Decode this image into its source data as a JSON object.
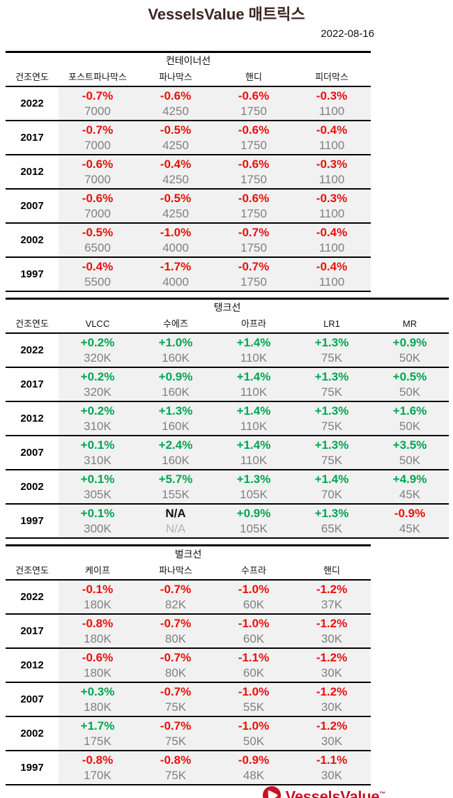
{
  "title": "VesselsValue 매트릭스",
  "date": "2022-08-16",
  "logo": {
    "text": "VesselsValue",
    "tm": "™"
  },
  "colors": {
    "negative": "#e8100c",
    "positive": "#00a651",
    "value_gray": "#808080",
    "na_gray": "#b5b5b5",
    "brand_red": "#c41425",
    "title": "#3d2421"
  },
  "chart_data": [
    {
      "type": "table",
      "title": "컨테이너선",
      "year_col_header": "건조연도",
      "columns": [
        "포스트파나막스",
        "파나막스",
        "핸디",
        "피더막스"
      ],
      "rows": [
        {
          "year": "2022",
          "cells": [
            [
              "-0.7%",
              "7000"
            ],
            [
              "-0.6%",
              "4250"
            ],
            [
              "-0.6%",
              "1750"
            ],
            [
              "-0.3%",
              "1100"
            ]
          ]
        },
        {
          "year": "2017",
          "cells": [
            [
              "-0.7%",
              "7000"
            ],
            [
              "-0.5%",
              "4250"
            ],
            [
              "-0.6%",
              "1750"
            ],
            [
              "-0.4%",
              "1100"
            ]
          ]
        },
        {
          "year": "2012",
          "cells": [
            [
              "-0.6%",
              "7000"
            ],
            [
              "-0.4%",
              "4250"
            ],
            [
              "-0.6%",
              "1750"
            ],
            [
              "-0.3%",
              "1100"
            ]
          ]
        },
        {
          "year": "2007",
          "cells": [
            [
              "-0.6%",
              "7000"
            ],
            [
              "-0.5%",
              "4250"
            ],
            [
              "-0.6%",
              "1750"
            ],
            [
              "-0.3%",
              "1100"
            ]
          ]
        },
        {
          "year": "2002",
          "cells": [
            [
              "-0.5%",
              "6500"
            ],
            [
              "-1.0%",
              "4000"
            ],
            [
              "-0.7%",
              "1750"
            ],
            [
              "-0.4%",
              "1100"
            ]
          ]
        },
        {
          "year": "1997",
          "cells": [
            [
              "-0.4%",
              "5500"
            ],
            [
              "-1.7%",
              "4000"
            ],
            [
              "-0.7%",
              "1750"
            ],
            [
              "-0.4%",
              "1100"
            ]
          ]
        }
      ]
    },
    {
      "type": "table",
      "title": "탱크선",
      "year_col_header": "건조연도",
      "columns": [
        "VLCC",
        "수에즈",
        "아프라",
        "LR1",
        "MR"
      ],
      "rows": [
        {
          "year": "2022",
          "cells": [
            [
              "+0.2%",
              "320K"
            ],
            [
              "+1.0%",
              "160K"
            ],
            [
              "+1.4%",
              "110K"
            ],
            [
              "+1.3%",
              "75K"
            ],
            [
              "+0.9%",
              "50K"
            ]
          ]
        },
        {
          "year": "2017",
          "cells": [
            [
              "+0.2%",
              "320K"
            ],
            [
              "+0.9%",
              "160K"
            ],
            [
              "+1.4%",
              "110K"
            ],
            [
              "+1.3%",
              "75K"
            ],
            [
              "+0.5%",
              "50K"
            ]
          ]
        },
        {
          "year": "2012",
          "cells": [
            [
              "+0.2%",
              "310K"
            ],
            [
              "+1.3%",
              "160K"
            ],
            [
              "+1.4%",
              "110K"
            ],
            [
              "+1.3%",
              "75K"
            ],
            [
              "+1.6%",
              "50K"
            ]
          ]
        },
        {
          "year": "2007",
          "cells": [
            [
              "+0.1%",
              "310K"
            ],
            [
              "+2.4%",
              "160K"
            ],
            [
              "+1.4%",
              "110K"
            ],
            [
              "+1.3%",
              "75K"
            ],
            [
              "+3.5%",
              "50K"
            ]
          ]
        },
        {
          "year": "2002",
          "cells": [
            [
              "+0.1%",
              "305K"
            ],
            [
              "+5.7%",
              "155K"
            ],
            [
              "+1.3%",
              "105K"
            ],
            [
              "+1.4%",
              "70K"
            ],
            [
              "+4.9%",
              "45K"
            ]
          ]
        },
        {
          "year": "1997",
          "cells": [
            [
              "+0.1%",
              "300K"
            ],
            [
              "N/A",
              "N/A"
            ],
            [
              "+0.9%",
              "105K"
            ],
            [
              "+1.3%",
              "65K"
            ],
            [
              "-0.9%",
              "45K"
            ]
          ]
        }
      ]
    },
    {
      "type": "table",
      "title": "벌크선",
      "year_col_header": "건조연도",
      "columns": [
        "케이프",
        "파나막스",
        "수프라",
        "핸디"
      ],
      "rows": [
        {
          "year": "2022",
          "cells": [
            [
              "-0.1%",
              "180K"
            ],
            [
              "-0.7%",
              "82K"
            ],
            [
              "-1.0%",
              "60K"
            ],
            [
              "-1.2%",
              "37K"
            ]
          ]
        },
        {
          "year": "2017",
          "cells": [
            [
              "-0.8%",
              "180K"
            ],
            [
              "-0.7%",
              "80K"
            ],
            [
              "-1.0%",
              "60K"
            ],
            [
              "-1.2%",
              "30K"
            ]
          ]
        },
        {
          "year": "2012",
          "cells": [
            [
              "-0.6%",
              "180K"
            ],
            [
              "-0.7%",
              "80K"
            ],
            [
              "-1.1%",
              "60K"
            ],
            [
              "-1.2%",
              "30K"
            ]
          ]
        },
        {
          "year": "2007",
          "cells": [
            [
              "+0.3%",
              "180K"
            ],
            [
              "-0.7%",
              "75K"
            ],
            [
              "-1.0%",
              "55K"
            ],
            [
              "-1.2%",
              "30K"
            ]
          ]
        },
        {
          "year": "2002",
          "cells": [
            [
              "+1.7%",
              "175K"
            ],
            [
              "-0.7%",
              "75K"
            ],
            [
              "-1.0%",
              "50K"
            ],
            [
              "-1.2%",
              "30K"
            ]
          ]
        },
        {
          "year": "1997",
          "cells": [
            [
              "-0.8%",
              "170K"
            ],
            [
              "-0.8%",
              "75K"
            ],
            [
              "-0.9%",
              "48K"
            ],
            [
              "-1.1%",
              "30K"
            ]
          ]
        }
      ]
    }
  ]
}
